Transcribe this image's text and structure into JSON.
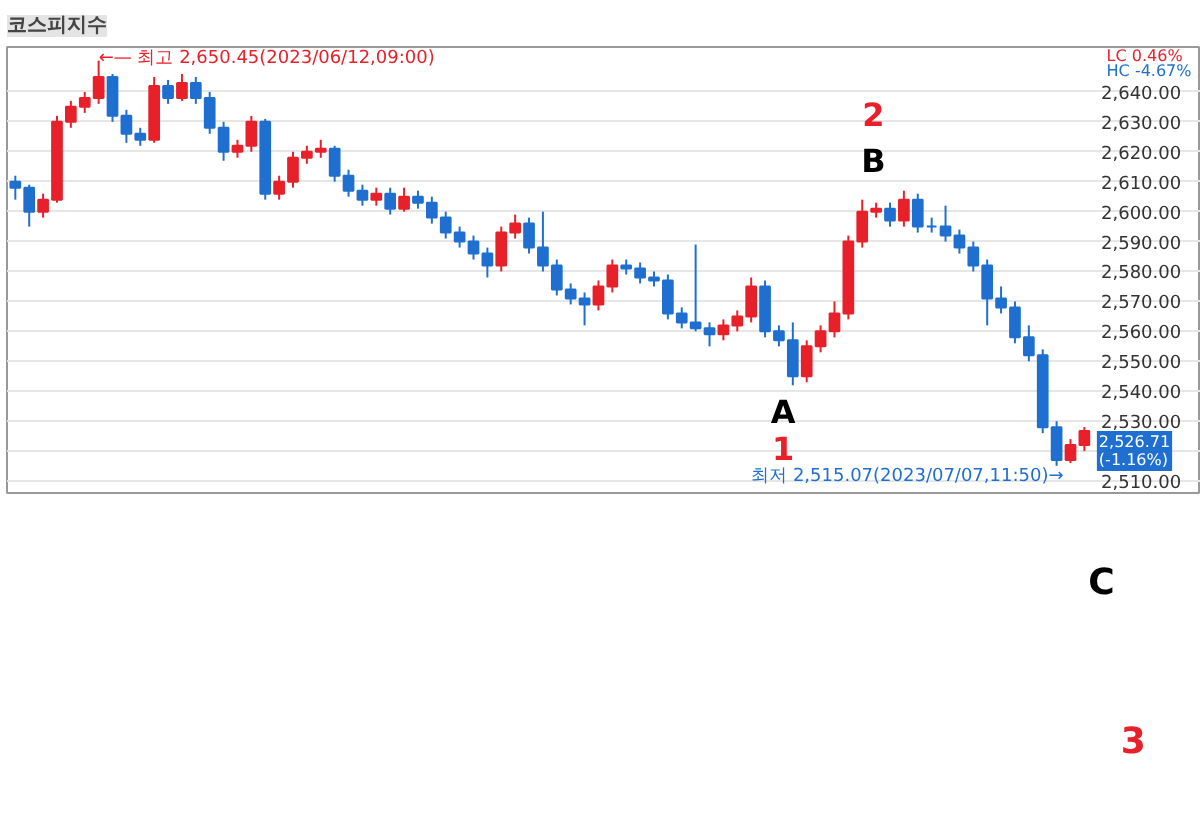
{
  "chart_data": {
    "type": "candlestick",
    "title": "코스피지수",
    "categories": [
      null,
      null,
      null,
      null,
      null,
      null,
      null,
      null,
      null,
      null,
      null,
      null,
      null,
      null,
      null,
      null,
      null,
      null,
      null,
      null,
      null,
      null,
      null,
      null,
      null,
      null,
      null,
      null,
      null,
      null,
      null,
      null,
      null,
      null,
      null,
      null,
      null,
      null,
      null,
      null,
      null,
      null,
      null,
      null,
      null,
      null,
      null,
      null,
      null,
      null,
      null,
      null,
      null,
      null,
      null,
      null,
      null,
      null,
      null,
      null,
      null,
      null,
      null,
      null,
      null,
      null,
      null,
      null,
      null,
      null,
      null,
      null,
      null,
      null,
      null,
      null,
      null,
      null
    ],
    "ohlc": [
      [
        2610,
        2612,
        2604,
        2608
      ],
      [
        2608,
        2609,
        2595,
        2600
      ],
      [
        2600,
        2606,
        2598,
        2604
      ],
      [
        2604,
        2632,
        2603,
        2630
      ],
      [
        2630,
        2637,
        2628,
        2635
      ],
      [
        2635,
        2640,
        2633,
        2638
      ],
      [
        2638,
        2650.45,
        2636,
        2645
      ],
      [
        2645,
        2646,
        2630,
        2632
      ],
      [
        2632,
        2634,
        2623,
        2626
      ],
      [
        2626,
        2628,
        2622,
        2624
      ],
      [
        2624,
        2645,
        2623,
        2642
      ],
      [
        2642,
        2644,
        2636,
        2638
      ],
      [
        2638,
        2646,
        2637,
        2643
      ],
      [
        2643,
        2645,
        2636,
        2638
      ],
      [
        2638,
        2640,
        2626,
        2628
      ],
      [
        2628,
        2630,
        2617,
        2620
      ],
      [
        2620,
        2624,
        2618,
        2622
      ],
      [
        2622,
        2632,
        2620,
        2630
      ],
      [
        2630,
        2631,
        2604,
        2606
      ],
      [
        2606,
        2612,
        2604,
        2610
      ],
      [
        2610,
        2620,
        2608,
        2618
      ],
      [
        2618,
        2622,
        2616,
        2620
      ],
      [
        2620,
        2624,
        2618,
        2621
      ],
      [
        2621,
        2622,
        2610,
        2612
      ],
      [
        2612,
        2614,
        2605,
        2607
      ],
      [
        2607,
        2609,
        2602,
        2604
      ],
      [
        2604,
        2608,
        2602,
        2606
      ],
      [
        2606,
        2608,
        2599,
        2601
      ],
      [
        2601,
        2608,
        2600,
        2605
      ],
      [
        2605,
        2607,
        2601,
        2603
      ],
      [
        2603,
        2605,
        2596,
        2598
      ],
      [
        2598,
        2600,
        2591,
        2593
      ],
      [
        2593,
        2595,
        2588,
        2590
      ],
      [
        2590,
        2592,
        2584,
        2586
      ],
      [
        2586,
        2588,
        2578,
        2582
      ],
      [
        2582,
        2595,
        2580,
        2593
      ],
      [
        2593,
        2599,
        2591,
        2596
      ],
      [
        2596,
        2598,
        2586,
        2588
      ],
      [
        2588,
        2600,
        2580,
        2582
      ],
      [
        2582,
        2584,
        2572,
        2574
      ],
      [
        2574,
        2576,
        2569,
        2571
      ],
      [
        2571,
        2573,
        2562,
        2569
      ],
      [
        2569,
        2577,
        2567,
        2575
      ],
      [
        2575,
        2584,
        2573,
        2582
      ],
      [
        2582,
        2584,
        2579,
        2581
      ],
      [
        2581,
        2583,
        2576,
        2578
      ],
      [
        2578,
        2580,
        2575,
        2577
      ],
      [
        2577,
        2579,
        2564,
        2566
      ],
      [
        2566,
        2568,
        2561,
        2563
      ],
      [
        2563,
        2589,
        2560,
        2561
      ],
      [
        2561,
        2563,
        2555,
        2559
      ],
      [
        2559,
        2564,
        2557,
        2562
      ],
      [
        2562,
        2567,
        2560,
        2565
      ],
      [
        2565,
        2578,
        2563,
        2575
      ],
      [
        2575,
        2577,
        2558,
        2560
      ],
      [
        2560,
        2562,
        2555,
        2557
      ],
      [
        2557,
        2563,
        2542,
        2545
      ],
      [
        2545,
        2557,
        2543,
        2555
      ],
      [
        2555,
        2562,
        2553,
        2560
      ],
      [
        2560,
        2570,
        2558,
        2566
      ],
      [
        2566,
        2592,
        2564,
        2590
      ],
      [
        2590,
        2604,
        2588,
        2600
      ],
      [
        2600,
        2603,
        2598,
        2601
      ],
      [
        2601,
        2603,
        2595,
        2597
      ],
      [
        2597,
        2607,
        2595,
        2604
      ],
      [
        2604,
        2606,
        2593,
        2595
      ],
      [
        2595,
        2598,
        2593,
        2595
      ],
      [
        2595,
        2602,
        2590,
        2592
      ],
      [
        2592,
        2594,
        2586,
        2588
      ],
      [
        2588,
        2590,
        2580,
        2582
      ],
      [
        2582,
        2584,
        2562,
        2571
      ],
      [
        2571,
        2575,
        2566,
        2568
      ],
      [
        2568,
        2570,
        2556,
        2558
      ],
      [
        2558,
        2562,
        2550,
        2552
      ],
      [
        2552,
        2554,
        2526,
        2528
      ],
      [
        2528,
        2530,
        2515.07,
        2517
      ],
      [
        2517,
        2524,
        2516,
        2522
      ],
      [
        2522,
        2528,
        2520,
        2526.71
      ]
    ],
    "colors": [
      "#1e6fd0",
      "#1e6fd0",
      "#e8202a",
      "#e8202a",
      "#e8202a",
      "#e8202a",
      "#e8202a",
      "#1e6fd0",
      "#1e6fd0",
      "#1e6fd0",
      "#e8202a",
      "#1e6fd0",
      "#e8202a",
      "#1e6fd0",
      "#1e6fd0",
      "#1e6fd0",
      "#e8202a",
      "#e8202a",
      "#1e6fd0",
      "#e8202a",
      "#e8202a",
      "#e8202a",
      "#e8202a",
      "#1e6fd0",
      "#1e6fd0",
      "#1e6fd0",
      "#e8202a",
      "#1e6fd0",
      "#e8202a",
      "#1e6fd0",
      "#1e6fd0",
      "#1e6fd0",
      "#1e6fd0",
      "#1e6fd0",
      "#1e6fd0",
      "#e8202a",
      "#e8202a",
      "#1e6fd0",
      "#1e6fd0",
      "#1e6fd0",
      "#1e6fd0",
      "#1e6fd0",
      "#e8202a",
      "#e8202a",
      "#1e6fd0",
      "#1e6fd0",
      "#1e6fd0",
      "#1e6fd0",
      "#1e6fd0",
      "#1e6fd0",
      "#1e6fd0",
      "#e8202a",
      "#e8202a",
      "#e8202a",
      "#1e6fd0",
      "#1e6fd0",
      "#1e6fd0",
      "#e8202a",
      "#e8202a",
      "#e8202a",
      "#e8202a",
      "#e8202a",
      "#e8202a",
      "#1e6fd0",
      "#e8202a",
      "#1e6fd0",
      "#1e6fd0",
      "#1e6fd0",
      "#1e6fd0",
      "#1e6fd0",
      "#1e6fd0",
      "#1e6fd0",
      "#1e6fd0",
      "#1e6fd0",
      "#1e6fd0",
      "#1e6fd0",
      "#e8202a",
      "#e8202a"
    ],
    "ylim": [
      2506,
      2655
    ],
    "yticks": [
      {
        "value": 2510,
        "label": "2,510.00"
      },
      {
        "value": 2520,
        "label": null
      },
      {
        "value": 2530,
        "label": "2,530.00"
      },
      {
        "value": 2540,
        "label": "2,540.00"
      },
      {
        "value": 2550,
        "label": "2,550.00"
      },
      {
        "value": 2560,
        "label": "2,560.00"
      },
      {
        "value": 2570,
        "label": "2,570.00"
      },
      {
        "value": 2580,
        "label": "2,580.00"
      },
      {
        "value": 2590,
        "label": "2,590.00"
      },
      {
        "value": 2600,
        "label": "2,600.00"
      },
      {
        "value": 2610,
        "label": "2,610.00"
      },
      {
        "value": 2620,
        "label": "2,620.00"
      },
      {
        "value": 2630,
        "label": "2,630.00"
      },
      {
        "value": 2640,
        "label": "2,640.00"
      }
    ],
    "grid": "y",
    "tick_labels": "y",
    "annotations": [
      "←— 최고 2,650.45(2023/06/12,09:00)",
      "최저 2,515.07(2023/07/07,11:50)→",
      "A",
      "B",
      "C",
      "1",
      "2",
      "3",
      "LC   0.46%",
      "HC  -4.67%",
      "2,526.71\n(-1.16%)"
    ]
  }
}
